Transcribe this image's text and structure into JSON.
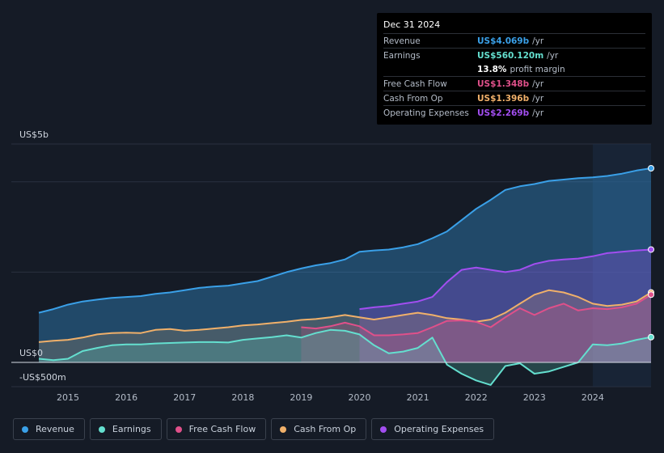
{
  "tooltip": {
    "date": "Dec 31 2024",
    "rows": [
      {
        "label": "Revenue",
        "value": "US$4.069b",
        "unit": "/yr",
        "color": "#3aa0e8"
      },
      {
        "label": "Earnings",
        "value": "US$560.120m",
        "unit": "/yr",
        "color": "#64dfcf"
      },
      {
        "label": "",
        "value": "13.8%",
        "unit": "profit margin",
        "color": "#ffffff"
      },
      {
        "label": "Free Cash Flow",
        "value": "US$1.348b",
        "unit": "/yr",
        "color": "#e0508a"
      },
      {
        "label": "Cash From Op",
        "value": "US$1.396b",
        "unit": "/yr",
        "color": "#f0b06a"
      },
      {
        "label": "Operating Expenses",
        "value": "US$2.269b",
        "unit": "/yr",
        "color": "#a24ef0"
      }
    ]
  },
  "legend": [
    {
      "label": "Revenue",
      "color": "#3aa0e8"
    },
    {
      "label": "Earnings",
      "color": "#64dfcf"
    },
    {
      "label": "Free Cash Flow",
      "color": "#e0508a"
    },
    {
      "label": "Cash From Op",
      "color": "#f0b06a"
    },
    {
      "label": "Operating Expenses",
      "color": "#a24ef0"
    }
  ],
  "chart_data": {
    "type": "area",
    "title": "",
    "xlabel": "",
    "ylabel": "",
    "y_unit": "US$ billions",
    "ylim": [
      -0.5,
      5
    ],
    "y_ticks": [
      {
        "value": 5,
        "label": "US$5b"
      },
      {
        "value": 0,
        "label": "US$0"
      },
      {
        "value": -0.5,
        "label": "-US$500m"
      }
    ],
    "xlim": [
      2014.5,
      2025.0
    ],
    "x_ticks": [
      "2015",
      "2016",
      "2017",
      "2018",
      "2019",
      "2020",
      "2021",
      "2022",
      "2023",
      "2024"
    ],
    "highlight_from": 2024.0,
    "series": [
      {
        "name": "Revenue",
        "color": "#3aa0e8",
        "points": [
          [
            2014.5,
            1.1
          ],
          [
            2014.75,
            1.18
          ],
          [
            2015.0,
            1.28
          ],
          [
            2015.25,
            1.35
          ],
          [
            2015.5,
            1.39
          ],
          [
            2015.75,
            1.43
          ],
          [
            2016.0,
            1.45
          ],
          [
            2016.25,
            1.47
          ],
          [
            2016.5,
            1.52
          ],
          [
            2016.75,
            1.55
          ],
          [
            2017.0,
            1.6
          ],
          [
            2017.25,
            1.65
          ],
          [
            2017.5,
            1.68
          ],
          [
            2017.75,
            1.7
          ],
          [
            2018.0,
            1.75
          ],
          [
            2018.25,
            1.8
          ],
          [
            2018.5,
            1.9
          ],
          [
            2018.75,
            2.0
          ],
          [
            2019.0,
            2.08
          ],
          [
            2019.25,
            2.15
          ],
          [
            2019.5,
            2.2
          ],
          [
            2019.75,
            2.28
          ],
          [
            2020.0,
            2.45
          ],
          [
            2020.25,
            2.48
          ],
          [
            2020.5,
            2.5
          ],
          [
            2020.75,
            2.55
          ],
          [
            2021.0,
            2.62
          ],
          [
            2021.25,
            2.75
          ],
          [
            2021.5,
            2.9
          ],
          [
            2021.75,
            3.15
          ],
          [
            2022.0,
            3.4
          ],
          [
            2022.25,
            3.6
          ],
          [
            2022.5,
            3.82
          ],
          [
            2022.75,
            3.9
          ],
          [
            2023.0,
            3.95
          ],
          [
            2023.25,
            4.02
          ],
          [
            2023.5,
            4.05
          ],
          [
            2023.75,
            4.08
          ],
          [
            2024.0,
            4.1
          ],
          [
            2024.25,
            4.13
          ],
          [
            2024.5,
            4.18
          ],
          [
            2024.75,
            4.25
          ],
          [
            2025.0,
            4.3
          ]
        ]
      },
      {
        "name": "Operating Expenses",
        "color": "#a24ef0",
        "points": [
          [
            2020.0,
            1.18
          ],
          [
            2020.25,
            1.22
          ],
          [
            2020.5,
            1.25
          ],
          [
            2020.75,
            1.3
          ],
          [
            2021.0,
            1.35
          ],
          [
            2021.25,
            1.45
          ],
          [
            2021.5,
            1.78
          ],
          [
            2021.75,
            2.05
          ],
          [
            2022.0,
            2.1
          ],
          [
            2022.25,
            2.05
          ],
          [
            2022.5,
            2.0
          ],
          [
            2022.75,
            2.05
          ],
          [
            2023.0,
            2.18
          ],
          [
            2023.25,
            2.25
          ],
          [
            2023.5,
            2.28
          ],
          [
            2023.75,
            2.3
          ],
          [
            2024.0,
            2.35
          ],
          [
            2024.25,
            2.42
          ],
          [
            2024.5,
            2.45
          ],
          [
            2024.75,
            2.48
          ],
          [
            2025.0,
            2.5
          ]
        ]
      },
      {
        "name": "Cash From Op",
        "color": "#f0b06a",
        "points": [
          [
            2014.5,
            0.45
          ],
          [
            2014.75,
            0.48
          ],
          [
            2015.0,
            0.5
          ],
          [
            2015.25,
            0.55
          ],
          [
            2015.5,
            0.62
          ],
          [
            2015.75,
            0.65
          ],
          [
            2016.0,
            0.66
          ],
          [
            2016.25,
            0.65
          ],
          [
            2016.5,
            0.72
          ],
          [
            2016.75,
            0.74
          ],
          [
            2017.0,
            0.7
          ],
          [
            2017.25,
            0.72
          ],
          [
            2017.5,
            0.75
          ],
          [
            2017.75,
            0.78
          ],
          [
            2018.0,
            0.82
          ],
          [
            2018.25,
            0.84
          ],
          [
            2018.5,
            0.87
          ],
          [
            2018.75,
            0.9
          ],
          [
            2019.0,
            0.94
          ],
          [
            2019.25,
            0.96
          ],
          [
            2019.5,
            1.0
          ],
          [
            2019.75,
            1.05
          ],
          [
            2020.0,
            1.0
          ],
          [
            2020.25,
            0.95
          ],
          [
            2020.5,
            1.0
          ],
          [
            2020.75,
            1.05
          ],
          [
            2021.0,
            1.1
          ],
          [
            2021.25,
            1.05
          ],
          [
            2021.5,
            0.98
          ],
          [
            2021.75,
            0.95
          ],
          [
            2022.0,
            0.9
          ],
          [
            2022.25,
            0.95
          ],
          [
            2022.5,
            1.1
          ],
          [
            2022.75,
            1.3
          ],
          [
            2023.0,
            1.5
          ],
          [
            2023.25,
            1.6
          ],
          [
            2023.5,
            1.55
          ],
          [
            2023.75,
            1.45
          ],
          [
            2024.0,
            1.3
          ],
          [
            2024.25,
            1.25
          ],
          [
            2024.5,
            1.28
          ],
          [
            2024.75,
            1.35
          ],
          [
            2025.0,
            1.55
          ]
        ]
      },
      {
        "name": "Free Cash Flow",
        "color": "#e0508a",
        "points": [
          [
            2019.0,
            0.78
          ],
          [
            2019.25,
            0.75
          ],
          [
            2019.5,
            0.8
          ],
          [
            2019.75,
            0.88
          ],
          [
            2020.0,
            0.8
          ],
          [
            2020.25,
            0.6
          ],
          [
            2020.5,
            0.6
          ],
          [
            2020.75,
            0.62
          ],
          [
            2021.0,
            0.65
          ],
          [
            2021.25,
            0.78
          ],
          [
            2021.5,
            0.92
          ],
          [
            2021.75,
            0.93
          ],
          [
            2022.0,
            0.9
          ],
          [
            2022.25,
            0.78
          ],
          [
            2022.5,
            1.0
          ],
          [
            2022.75,
            1.2
          ],
          [
            2023.0,
            1.05
          ],
          [
            2023.25,
            1.2
          ],
          [
            2023.5,
            1.3
          ],
          [
            2023.75,
            1.15
          ],
          [
            2024.0,
            1.2
          ],
          [
            2024.25,
            1.18
          ],
          [
            2024.5,
            1.22
          ],
          [
            2024.75,
            1.3
          ],
          [
            2025.0,
            1.5
          ]
        ]
      },
      {
        "name": "Earnings",
        "color": "#64dfcf",
        "points": [
          [
            2014.5,
            0.08
          ],
          [
            2014.75,
            0.05
          ],
          [
            2015.0,
            0.08
          ],
          [
            2015.25,
            0.25
          ],
          [
            2015.5,
            0.32
          ],
          [
            2015.75,
            0.38
          ],
          [
            2016.0,
            0.4
          ],
          [
            2016.25,
            0.4
          ],
          [
            2016.5,
            0.42
          ],
          [
            2016.75,
            0.43
          ],
          [
            2017.0,
            0.44
          ],
          [
            2017.25,
            0.45
          ],
          [
            2017.5,
            0.45
          ],
          [
            2017.75,
            0.44
          ],
          [
            2018.0,
            0.5
          ],
          [
            2018.25,
            0.53
          ],
          [
            2018.5,
            0.56
          ],
          [
            2018.75,
            0.6
          ],
          [
            2019.0,
            0.55
          ],
          [
            2019.25,
            0.65
          ],
          [
            2019.5,
            0.72
          ],
          [
            2019.75,
            0.7
          ],
          [
            2020.0,
            0.62
          ],
          [
            2020.25,
            0.38
          ],
          [
            2020.5,
            0.2
          ],
          [
            2020.75,
            0.24
          ],
          [
            2021.0,
            0.32
          ],
          [
            2021.25,
            0.55
          ],
          [
            2021.5,
            -0.05
          ],
          [
            2021.75,
            -0.25
          ],
          [
            2022.0,
            -0.4
          ],
          [
            2022.25,
            -0.5
          ],
          [
            2022.5,
            -0.08
          ],
          [
            2022.75,
            -0.02
          ],
          [
            2023.0,
            -0.25
          ],
          [
            2023.25,
            -0.2
          ],
          [
            2023.5,
            -0.1
          ],
          [
            2023.75,
            0.0
          ],
          [
            2024.0,
            0.4
          ],
          [
            2024.25,
            0.38
          ],
          [
            2024.5,
            0.42
          ],
          [
            2024.75,
            0.5
          ],
          [
            2025.0,
            0.56
          ]
        ]
      }
    ]
  }
}
